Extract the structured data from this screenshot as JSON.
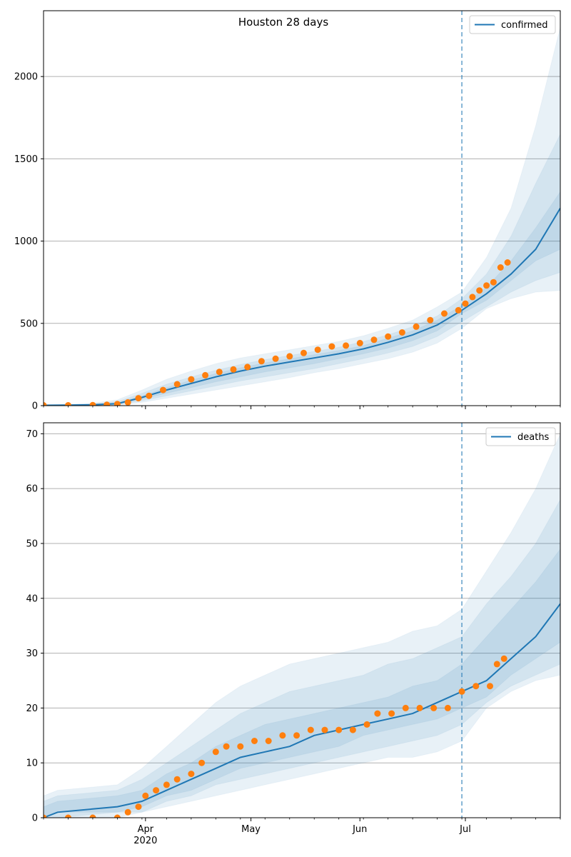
{
  "chart_data": [
    {
      "type": "line",
      "title": "Houston 28 days",
      "legend": [
        "confirmed"
      ],
      "legend_placement": "top-right",
      "grid": "horizontal",
      "ylim": [
        0,
        2400
      ],
      "y_ticks": [
        "0",
        "500",
        "1000",
        "1500",
        "2000"
      ],
      "xlim": [
        "2020-03-03",
        "2020-07-28"
      ],
      "x_ticks": [
        "Apr\n2020",
        "May",
        "Jun",
        "Jul"
      ],
      "forecast_start": "2020-06-30",
      "model_median": {
        "x": [
          "2020-03-03",
          "2020-03-10",
          "2020-03-17",
          "2020-03-24",
          "2020-03-31",
          "2020-04-07",
          "2020-04-14",
          "2020-04-21",
          "2020-04-28",
          "2020-05-05",
          "2020-05-12",
          "2020-05-19",
          "2020-05-26",
          "2020-06-02",
          "2020-06-09",
          "2020-06-16",
          "2020-06-23",
          "2020-06-30",
          "2020-07-07",
          "2020-07-14",
          "2020-07-21",
          "2020-07-28"
        ],
        "values": [
          2,
          3,
          5,
          12,
          50,
          95,
          135,
          175,
          210,
          240,
          265,
          290,
          315,
          345,
          385,
          430,
          490,
          580,
          680,
          800,
          950,
          1200
        ]
      },
      "bands": [
        {
          "lower": [
            0,
            0,
            0,
            2,
            20,
            45,
            70,
            95,
            120,
            145,
            170,
            200,
            225,
            255,
            285,
            325,
            380,
            470,
            590,
            650,
            690,
            700
          ],
          "upper": [
            5,
            8,
            15,
            35,
            95,
            160,
            210,
            255,
            290,
            315,
            340,
            365,
            390,
            425,
            470,
            520,
            600,
            690,
            900,
            1200,
            1700,
            2300
          ]
        },
        {
          "lower": [
            0,
            0,
            1,
            5,
            30,
            60,
            90,
            120,
            150,
            175,
            200,
            225,
            255,
            285,
            320,
            360,
            420,
            510,
            600,
            690,
            760,
            810
          ],
          "upper": [
            4,
            6,
            10,
            25,
            75,
            130,
            175,
            215,
            250,
            280,
            305,
            330,
            355,
            390,
            430,
            480,
            545,
            650,
            800,
            1030,
            1350,
            1650
          ]
        },
        {
          "lower": [
            0,
            1,
            2,
            8,
            40,
            75,
            110,
            145,
            175,
            205,
            230,
            255,
            285,
            315,
            350,
            395,
            455,
            560,
            640,
            760,
            880,
            950
          ],
          "upper": [
            3,
            5,
            8,
            18,
            60,
            110,
            155,
            195,
            230,
            260,
            285,
            310,
            335,
            365,
            410,
            455,
            520,
            610,
            720,
            880,
            1080,
            1300
          ]
        }
      ],
      "observed": {
        "x": [
          "2020-03-03",
          "2020-03-10",
          "2020-03-17",
          "2020-03-21",
          "2020-03-24",
          "2020-03-27",
          "2020-03-30",
          "2020-04-02",
          "2020-04-06",
          "2020-04-10",
          "2020-04-14",
          "2020-04-18",
          "2020-04-22",
          "2020-04-26",
          "2020-04-30",
          "2020-05-04",
          "2020-05-08",
          "2020-05-12",
          "2020-05-16",
          "2020-05-20",
          "2020-05-24",
          "2020-05-28",
          "2020-06-01",
          "2020-06-05",
          "2020-06-09",
          "2020-06-13",
          "2020-06-17",
          "2020-06-21",
          "2020-06-25",
          "2020-06-29",
          "2020-07-01",
          "2020-07-03",
          "2020-07-05",
          "2020-07-07",
          "2020-07-09",
          "2020-07-11",
          "2020-07-13"
        ],
        "values": [
          2,
          2,
          3,
          5,
          10,
          20,
          45,
          60,
          95,
          130,
          160,
          185,
          205,
          220,
          235,
          270,
          285,
          300,
          320,
          340,
          360,
          365,
          380,
          400,
          420,
          445,
          480,
          520,
          560,
          580,
          620,
          660,
          700,
          730,
          750,
          840,
          870
        ]
      }
    },
    {
      "type": "line",
      "title": "",
      "legend": [
        "deaths"
      ],
      "legend_placement": "top-right",
      "grid": "horizontal",
      "ylim": [
        0,
        72
      ],
      "y_ticks": [
        "0",
        "10",
        "20",
        "30",
        "40",
        "50",
        "60",
        "70"
      ],
      "xlim": [
        "2020-03-03",
        "2020-07-28"
      ],
      "x_ticks": [
        "Apr\n2020",
        "May",
        "Jun",
        "Jul"
      ],
      "forecast_start": "2020-06-30",
      "model_median": {
        "x": [
          "2020-03-03",
          "2020-03-07",
          "2020-03-24",
          "2020-03-31",
          "2020-04-07",
          "2020-04-14",
          "2020-04-21",
          "2020-04-28",
          "2020-05-05",
          "2020-05-12",
          "2020-05-19",
          "2020-05-26",
          "2020-06-02",
          "2020-06-09",
          "2020-06-16",
          "2020-06-23",
          "2020-06-30",
          "2020-07-07",
          "2020-07-14",
          "2020-07-21",
          "2020-07-28"
        ],
        "values": [
          0,
          1,
          2,
          3,
          5,
          7,
          9,
          11,
          12,
          13,
          15,
          16,
          17,
          18,
          19,
          21,
          23,
          25,
          29,
          33,
          39
        ]
      },
      "bands": [
        {
          "lower": [
            0,
            0,
            0,
            1,
            2,
            3,
            4,
            5,
            6,
            7,
            8,
            9,
            10,
            11,
            11,
            12,
            14,
            20,
            23,
            25,
            26
          ],
          "upper": [
            4,
            5,
            6,
            9,
            13,
            17,
            21,
            24,
            26,
            28,
            29,
            30,
            31,
            32,
            34,
            35,
            38,
            45,
            52,
            60,
            70
          ]
        },
        {
          "lower": [
            0,
            0,
            1,
            1,
            3,
            4,
            6,
            7,
            8,
            9,
            10,
            11,
            12,
            13,
            14,
            15,
            17,
            21,
            24,
            26,
            28
          ],
          "upper": [
            3,
            4,
            5,
            7,
            10,
            13,
            16,
            19,
            21,
            23,
            24,
            25,
            26,
            28,
            29,
            31,
            33,
            39,
            44,
            50,
            58
          ]
        },
        {
          "lower": [
            0,
            1,
            1,
            2,
            4,
            5,
            7,
            9,
            10,
            11,
            12,
            13,
            15,
            16,
            17,
            18,
            20,
            22,
            26,
            29,
            32
          ],
          "upper": [
            2,
            3,
            4,
            5,
            8,
            10,
            13,
            15,
            17,
            18,
            19,
            20,
            21,
            22,
            24,
            25,
            28,
            33,
            38,
            43,
            49
          ]
        }
      ],
      "observed": {
        "x": [
          "2020-03-03",
          "2020-03-10",
          "2020-03-17",
          "2020-03-24",
          "2020-03-27",
          "2020-03-30",
          "2020-04-01",
          "2020-04-04",
          "2020-04-07",
          "2020-04-10",
          "2020-04-14",
          "2020-04-17",
          "2020-04-21",
          "2020-04-24",
          "2020-04-28",
          "2020-05-02",
          "2020-05-06",
          "2020-05-10",
          "2020-05-14",
          "2020-05-18",
          "2020-05-22",
          "2020-05-26",
          "2020-05-30",
          "2020-06-03",
          "2020-06-06",
          "2020-06-10",
          "2020-06-14",
          "2020-06-18",
          "2020-06-22",
          "2020-06-26",
          "2020-06-30",
          "2020-07-04",
          "2020-07-08",
          "2020-07-10",
          "2020-07-12"
        ],
        "values": [
          0,
          0,
          0,
          0,
          1,
          2,
          4,
          5,
          6,
          7,
          8,
          10,
          12,
          13,
          13,
          14,
          14,
          15,
          15,
          16,
          16,
          16,
          16,
          17,
          19,
          19,
          20,
          20,
          20,
          20,
          23,
          24,
          24,
          28,
          29
        ]
      }
    }
  ],
  "colors": {
    "median": "#1f77b4",
    "observed": "#ff7f0e",
    "band": "#1f77b4",
    "vline": "#1f77b4",
    "grid": "#b0b0b0"
  }
}
